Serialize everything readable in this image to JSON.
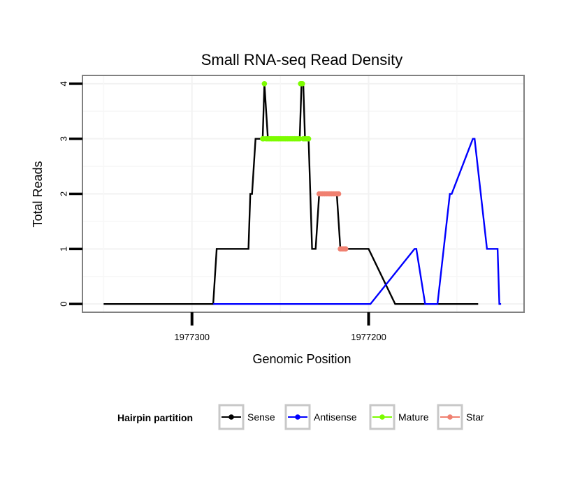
{
  "chart_data": {
    "type": "line",
    "title": "Small RNA-seq Read Density",
    "xlabel": "Genomic Position",
    "ylabel": "Total Reads",
    "x_reversed": true,
    "xlim": [
      1977362,
      1977112
    ],
    "ylim": [
      -0.15,
      4.15
    ],
    "x_ticks": [
      1977300,
      1977200
    ],
    "x_tick_labels": [
      "1977300",
      "1977200"
    ],
    "y_ticks": [
      0,
      1,
      2,
      3,
      4
    ],
    "y_tick_labels": [
      "0",
      "1",
      "2",
      "3",
      "4"
    ],
    "grid": true,
    "legend_position": "bottom",
    "legend_title": "Hairpin partition",
    "series": [
      {
        "name": "Sense",
        "color": "#000000",
        "style": "line",
        "x": [
          1977350,
          1977288,
          1977286,
          1977268,
          1977267,
          1977266,
          1977264,
          1977260,
          1977259,
          1977257,
          1977254,
          1977253,
          1977251,
          1977239,
          1977238,
          1977237,
          1977236,
          1977234,
          1977232,
          1977230,
          1977228,
          1977227,
          1977219,
          1977218,
          1977216,
          1977200,
          1977185,
          1977170,
          1977155,
          1977138
        ],
        "y": [
          0,
          0,
          1,
          1,
          2,
          2,
          3,
          3,
          4,
          3,
          3,
          3,
          3,
          3,
          4,
          4,
          3,
          3,
          1,
          1,
          2,
          2,
          2,
          2,
          1,
          1,
          0,
          0,
          0,
          0
        ]
      },
      {
        "name": "Antisense",
        "color": "#0000ff",
        "style": "line",
        "x": [
          1977288,
          1977200,
          1977199,
          1977174,
          1977173,
          1977168,
          1977167,
          1977162,
          1977161,
          1977154,
          1977153,
          1977141,
          1977140,
          1977133,
          1977132,
          1977127,
          1977126,
          1977125
        ],
        "y": [
          0,
          0,
          0,
          1,
          1,
          0,
          0,
          0,
          0,
          2,
          2,
          3,
          3,
          1,
          1,
          1,
          0,
          0
        ]
      },
      {
        "name": "Mature",
        "color": "#7cfc00",
        "style": "points",
        "x": [
          1977260,
          1977259.5,
          1977259,
          1977258,
          1977257,
          1977256,
          1977255,
          1977254,
          1977253,
          1977252,
          1977251,
          1977250,
          1977249,
          1977248,
          1977247,
          1977246,
          1977245,
          1977244,
          1977243,
          1977242,
          1977241,
          1977240,
          1977239,
          1977238.5,
          1977238,
          1977237.5,
          1977237,
          1977236,
          1977235,
          1977234
        ],
        "y": [
          3,
          3,
          4,
          3,
          3,
          3,
          3,
          3,
          3,
          3,
          3,
          3,
          3,
          3,
          3,
          3,
          3,
          3,
          3,
          3,
          3,
          3,
          3,
          4,
          4,
          4,
          3,
          3,
          3,
          3
        ]
      },
      {
        "name": "Star",
        "color": "#f08070",
        "style": "points",
        "x": [
          1977228,
          1977227,
          1977226,
          1977225,
          1977224,
          1977223,
          1977222,
          1977221,
          1977220,
          1977219,
          1977218,
          1977217,
          1977216,
          1977215,
          1977214,
          1977213
        ],
        "y": [
          2,
          2,
          2,
          2,
          2,
          2,
          2,
          2,
          2,
          2,
          2,
          2,
          1,
          1,
          1,
          1
        ]
      }
    ]
  }
}
